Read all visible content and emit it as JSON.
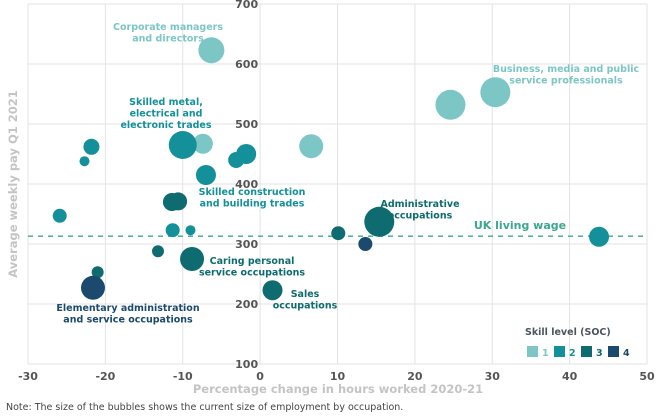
{
  "chart_data": {
    "type": "scatter",
    "subtype": "bubble",
    "title": "",
    "xlabel": "Percentage change in hours worked 2020-21",
    "ylabel": "Average weekly pay Q1 2021",
    "xlim": [
      -30,
      50
    ],
    "ylim": [
      100,
      700
    ],
    "xticks": [
      -30,
      -20,
      -10,
      0,
      10,
      20,
      30,
      40,
      50
    ],
    "yticks": [
      100,
      200,
      300,
      400,
      500,
      600,
      700
    ],
    "grid": true,
    "reference_line": {
      "label": "UK living wage",
      "y": 313,
      "color": "#3aa88e"
    },
    "legend": {
      "title": "Skill level (SOC)",
      "placement": "bottom-right",
      "items": [
        {
          "label": "1",
          "color": "#7cc6c6"
        },
        {
          "label": "2",
          "color": "#14909a"
        },
        {
          "label": "3",
          "color": "#0e6b70"
        },
        {
          "label": "4",
          "color": "#1b4a6e"
        }
      ]
    },
    "points": [
      {
        "x": -6.3,
        "y": 623,
        "size": 13,
        "skill": 1,
        "label": "Corporate managers and directors"
      },
      {
        "x": 24.6,
        "y": 532,
        "size": 15,
        "skill": 1
      },
      {
        "x": 30.4,
        "y": 553,
        "size": 15,
        "skill": 1,
        "label": "Business, media and public service professionals"
      },
      {
        "x": -7.4,
        "y": 467,
        "size": 10,
        "skill": 1
      },
      {
        "x": 6.6,
        "y": 463,
        "size": 12,
        "skill": 1
      },
      {
        "x": -10.0,
        "y": 465,
        "size": 14,
        "skill": 2,
        "label": "Skilled metal, electrical and electronic trades"
      },
      {
        "x": -21.8,
        "y": 462,
        "size": 8,
        "skill": 2
      },
      {
        "x": -22.7,
        "y": 438,
        "size": 5,
        "skill": 2
      },
      {
        "x": -3.1,
        "y": 440,
        "size": 8,
        "skill": 2
      },
      {
        "x": -1.8,
        "y": 450,
        "size": 10,
        "skill": 2
      },
      {
        "x": -7.0,
        "y": 415,
        "size": 10,
        "skill": 2,
        "label": "Skilled construction and building trades"
      },
      {
        "x": -11.4,
        "y": 370,
        "size": 9,
        "skill": 3
      },
      {
        "x": -10.6,
        "y": 371,
        "size": 9,
        "skill": 3
      },
      {
        "x": -25.9,
        "y": 347,
        "size": 7,
        "skill": 2
      },
      {
        "x": -11.3,
        "y": 323,
        "size": 7,
        "skill": 2
      },
      {
        "x": -9.0,
        "y": 323,
        "size": 5,
        "skill": 2
      },
      {
        "x": -13.2,
        "y": 288,
        "size": 6,
        "skill": 3
      },
      {
        "x": -8.8,
        "y": 275,
        "size": 12,
        "skill": 3,
        "label": "Caring personal service occupations"
      },
      {
        "x": -21.0,
        "y": 253,
        "size": 6,
        "skill": 3
      },
      {
        "x": -21.6,
        "y": 227,
        "size": 12,
        "skill": 4,
        "label": "Elementary administration and service occupations"
      },
      {
        "x": 1.6,
        "y": 223,
        "size": 10,
        "skill": 3,
        "label": "Sales occupations"
      },
      {
        "x": 10.1,
        "y": 318,
        "size": 7,
        "skill": 3
      },
      {
        "x": 15.4,
        "y": 337,
        "size": 15,
        "skill": 3,
        "label": "Administrative occupations"
      },
      {
        "x": 13.6,
        "y": 300,
        "size": 7,
        "skill": 4
      },
      {
        "x": 43.8,
        "y": 312,
        "size": 10,
        "skill": 2
      }
    ],
    "annotations": [
      {
        "lines": [
          "Corporate managers",
          "and directors"
        ],
        "skill": 1
      },
      {
        "lines": [
          "Business, media and public",
          "service professionals"
        ],
        "skill": 1
      },
      {
        "lines": [
          "Skilled metal,",
          "electrical and",
          "electronic trades"
        ],
        "skill": 2
      },
      {
        "lines": [
          "Skilled construction",
          "and building trades"
        ],
        "skill": 2
      },
      {
        "lines": [
          "Administrative",
          "occupations"
        ],
        "skill": 3
      },
      {
        "lines": [
          "Caring personal",
          "service occupations"
        ],
        "skill": 3
      },
      {
        "lines": [
          "Sales",
          "occupations"
        ],
        "skill": 3
      },
      {
        "lines": [
          "Elementary administration",
          "and service occupations"
        ],
        "skill": 4
      }
    ],
    "note": "Note: The size of the bubbles shows the current size of employment by occupation."
  }
}
